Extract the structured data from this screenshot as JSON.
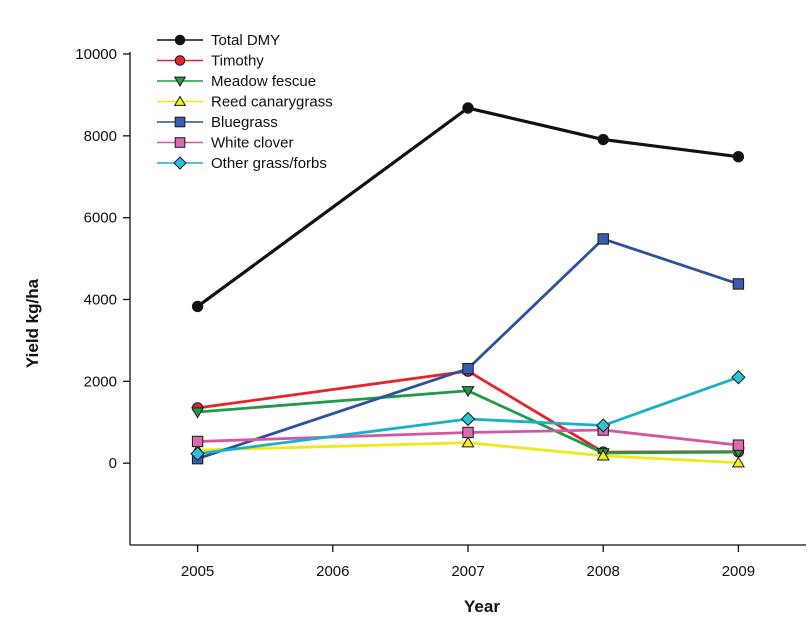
{
  "chart_data": {
    "type": "line",
    "title": "",
    "xlabel": "Year",
    "ylabel": "Yield kg/ha",
    "x": [
      2005,
      2006,
      2007,
      2008,
      2009
    ],
    "x_tick_labels": [
      "2005",
      "2006",
      "2007",
      "2008",
      "2009"
    ],
    "xlim": [
      2004.5,
      2009.5
    ],
    "ylim": [
      -2000,
      10000
    ],
    "y_ticks": [
      0,
      2000,
      4000,
      6000,
      8000,
      10000
    ],
    "y_tick_labels": [
      "0",
      "2000",
      "4000",
      "6000",
      "8000",
      "10000"
    ],
    "grid": false,
    "legend_position": "top-left",
    "series": [
      {
        "name": "Total DMY",
        "color": "#111111",
        "marker": "circle",
        "marker_fill": "#111111",
        "points": [
          {
            "x": 2005,
            "y": 3830
          },
          {
            "x": 2007,
            "y": 8680
          },
          {
            "x": 2008,
            "y": 7910
          },
          {
            "x": 2009,
            "y": 7490
          }
        ]
      },
      {
        "name": "Timothy",
        "color": "#e8232b",
        "marker": "circle",
        "marker_fill": "#e8232b",
        "points": [
          {
            "x": 2005,
            "y": 1350
          },
          {
            "x": 2007,
            "y": 2250
          },
          {
            "x": 2008,
            "y": 270
          },
          {
            "x": 2009,
            "y": 280
          }
        ]
      },
      {
        "name": "Meadow fescue",
        "color": "#1f9a48",
        "marker": "triangle-down",
        "marker_fill": "#1f9a48",
        "points": [
          {
            "x": 2005,
            "y": 1250
          },
          {
            "x": 2007,
            "y": 1770
          },
          {
            "x": 2008,
            "y": 250
          },
          {
            "x": 2009,
            "y": 270
          }
        ]
      },
      {
        "name": "Reed canarygrass",
        "color": "#f0e91a",
        "marker": "triangle-up",
        "marker_fill": "#f3ee1c",
        "points": [
          {
            "x": 2005,
            "y": 320
          },
          {
            "x": 2007,
            "y": 500
          },
          {
            "x": 2008,
            "y": 180
          },
          {
            "x": 2009,
            "y": 10
          }
        ]
      },
      {
        "name": "Bluegrass",
        "color": "#2f4fa0",
        "marker": "square",
        "marker_fill": "#3a5bb0",
        "points": [
          {
            "x": 2005,
            "y": 110
          },
          {
            "x": 2007,
            "y": 2310
          },
          {
            "x": 2008,
            "y": 5480
          },
          {
            "x": 2009,
            "y": 4380
          }
        ]
      },
      {
        "name": "White clover",
        "color": "#d4579f",
        "marker": "square",
        "marker_fill": "#d96bb0",
        "points": [
          {
            "x": 2005,
            "y": 530
          },
          {
            "x": 2007,
            "y": 750
          },
          {
            "x": 2008,
            "y": 810
          },
          {
            "x": 2009,
            "y": 440
          }
        ]
      },
      {
        "name": "Other grass/forbs",
        "color": "#1bb0c9",
        "marker": "diamond",
        "marker_fill": "#2cc3d6",
        "points": [
          {
            "x": 2005,
            "y": 230
          },
          {
            "x": 2007,
            "y": 1080
          },
          {
            "x": 2008,
            "y": 920
          },
          {
            "x": 2009,
            "y": 2100
          }
        ]
      }
    ]
  }
}
